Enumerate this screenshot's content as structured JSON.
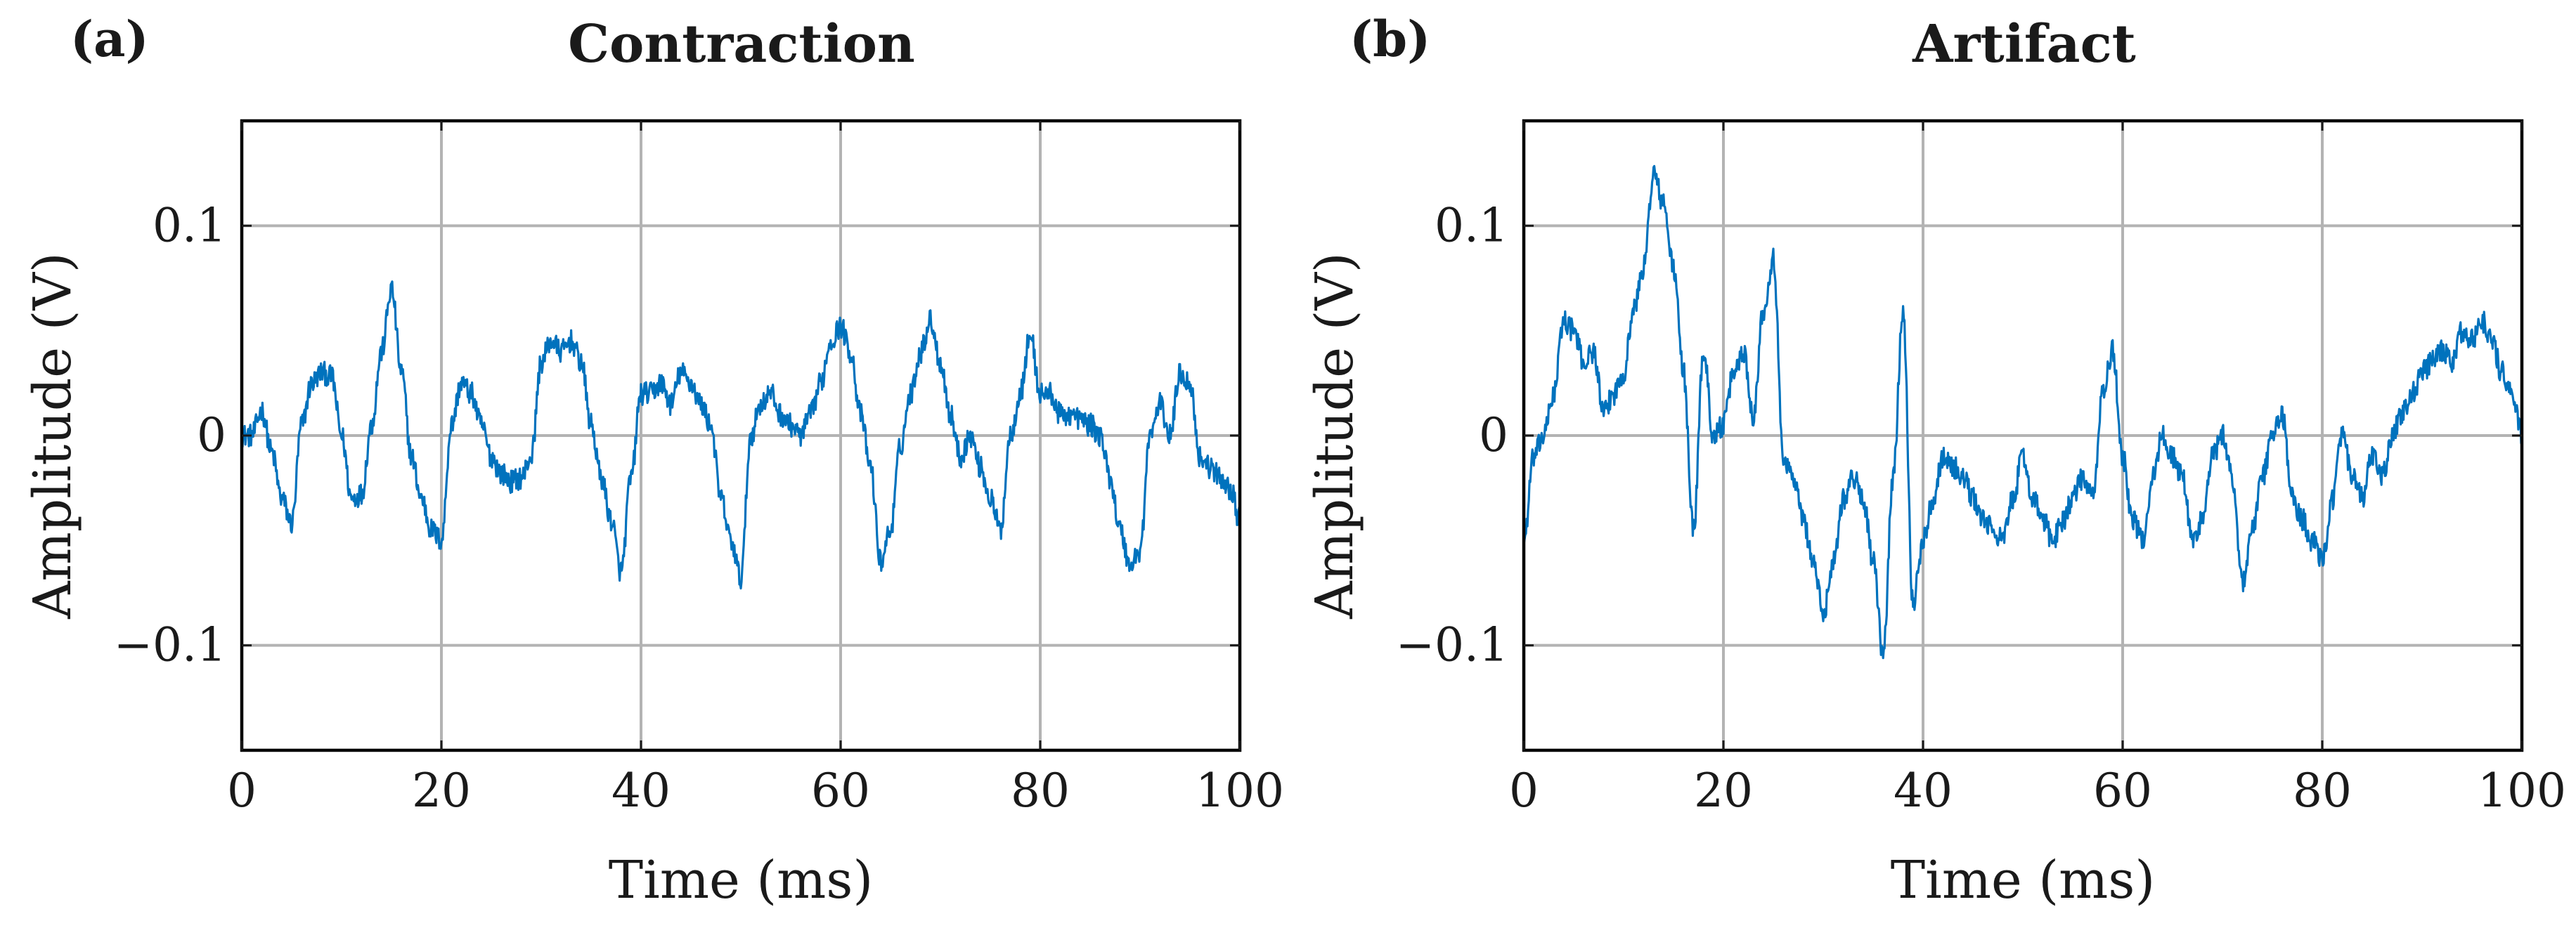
{
  "chart_data": [
    {
      "type": "line",
      "panel_label": "(a)",
      "title": "Contraction",
      "xlabel": "Time (ms)",
      "ylabel": "Amplitude (V)",
      "xlim": [
        0,
        100
      ],
      "ylim": [
        -0.15,
        0.15
      ],
      "xticks": [
        0,
        20,
        40,
        60,
        80,
        100
      ],
      "xtick_labels": [
        "0",
        "20",
        "40",
        "60",
        "80",
        "100"
      ],
      "yticks": [
        -0.1,
        0,
        0.1
      ],
      "ytick_labels": [
        "−0.1",
        "0",
        "0.1"
      ],
      "grid": true,
      "color": "#0072bd",
      "series": [
        {
          "name": "Contraction",
          "x": [
            0,
            1,
            2,
            3,
            4,
            5,
            6,
            7,
            8,
            9,
            10,
            11,
            12,
            13,
            14,
            15,
            16,
            17,
            18,
            19,
            20,
            21,
            22,
            23,
            24,
            25,
            26,
            27,
            28,
            29,
            30,
            31,
            32,
            33,
            34,
            35,
            36,
            37,
            38,
            39,
            40,
            41,
            42,
            43,
            44,
            45,
            46,
            47,
            48,
            49,
            50,
            51,
            52,
            53,
            54,
            55,
            56,
            57,
            58,
            59,
            60,
            61,
            62,
            63,
            64,
            65,
            66,
            67,
            68,
            69,
            70,
            71,
            72,
            73,
            74,
            75,
            76,
            77,
            78,
            79,
            80,
            81,
            82,
            83,
            84,
            85,
            86,
            87,
            88,
            89,
            90,
            91,
            92,
            93,
            94,
            95,
            96,
            97,
            98,
            99,
            100
          ],
          "values": [
            0.0,
            0.0,
            0.012,
            -0.008,
            -0.03,
            -0.042,
            0.005,
            0.025,
            0.03,
            0.028,
            0.0,
            -0.03,
            -0.028,
            0.005,
            0.04,
            0.07,
            0.03,
            -0.01,
            -0.03,
            -0.045,
            -0.05,
            0.005,
            0.025,
            0.02,
            0.005,
            -0.01,
            -0.018,
            -0.022,
            -0.02,
            -0.01,
            0.035,
            0.045,
            0.04,
            0.045,
            0.035,
            0.005,
            -0.02,
            -0.04,
            -0.065,
            -0.02,
            0.02,
            0.02,
            0.025,
            0.015,
            0.03,
            0.025,
            0.015,
            0.005,
            -0.03,
            -0.05,
            -0.068,
            0.0,
            0.015,
            0.02,
            0.01,
            0.005,
            0.0,
            0.01,
            0.025,
            0.045,
            0.052,
            0.04,
            0.01,
            -0.015,
            -0.06,
            -0.045,
            -0.005,
            0.02,
            0.04,
            0.055,
            0.035,
            0.01,
            -0.01,
            0.0,
            -0.015,
            -0.03,
            -0.045,
            0.0,
            0.02,
            0.048,
            0.02,
            0.02,
            0.01,
            0.01,
            0.008,
            0.005,
            0.0,
            -0.02,
            -0.045,
            -0.062,
            -0.055,
            0.0,
            0.015,
            0.0,
            0.03,
            0.025,
            -0.01,
            -0.015,
            -0.02,
            -0.025,
            -0.04
          ]
        }
      ]
    },
    {
      "type": "line",
      "panel_label": "(b)",
      "title": "Artifact",
      "xlabel": "Time (ms)",
      "ylabel": "Amplitude (V)",
      "xlim": [
        0,
        100
      ],
      "ylim": [
        -0.15,
        0.15
      ],
      "xticks": [
        0,
        20,
        40,
        60,
        80,
        100
      ],
      "xtick_labels": [
        "0",
        "20",
        "40",
        "60",
        "80",
        "100"
      ],
      "yticks": [
        -0.1,
        0,
        0.1
      ],
      "ytick_labels": [
        "−0.1",
        "0",
        "0.1"
      ],
      "grid": true,
      "color": "#0072bd",
      "series": [
        {
          "name": "Artifact",
          "x": [
            0,
            1,
            2,
            3,
            4,
            5,
            6,
            7,
            8,
            9,
            10,
            11,
            12,
            13,
            14,
            15,
            16,
            17,
            18,
            19,
            20,
            21,
            22,
            23,
            24,
            25,
            26,
            27,
            28,
            29,
            30,
            31,
            32,
            33,
            34,
            35,
            36,
            37,
            38,
            39,
            40,
            41,
            42,
            43,
            44,
            45,
            46,
            47,
            48,
            49,
            50,
            51,
            52,
            53,
            54,
            55,
            56,
            57,
            58,
            59,
            60,
            61,
            62,
            63,
            64,
            65,
            66,
            67,
            68,
            69,
            70,
            71,
            72,
            73,
            74,
            75,
            76,
            77,
            78,
            79,
            80,
            81,
            82,
            83,
            84,
            85,
            86,
            87,
            88,
            89,
            90,
            91,
            92,
            93,
            94,
            95,
            96,
            97,
            98,
            99,
            100
          ],
          "values": [
            -0.05,
            -0.01,
            0.0,
            0.02,
            0.055,
            0.05,
            0.035,
            0.04,
            0.01,
            0.02,
            0.03,
            0.06,
            0.08,
            0.125,
            0.11,
            0.08,
            0.03,
            -0.045,
            0.04,
            0.0,
            0.005,
            0.03,
            0.04,
            0.01,
            0.06,
            0.085,
            -0.01,
            -0.02,
            -0.04,
            -0.06,
            -0.085,
            -0.06,
            -0.03,
            -0.02,
            -0.03,
            -0.06,
            -0.105,
            -0.02,
            0.06,
            -0.08,
            -0.05,
            -0.03,
            -0.01,
            -0.015,
            -0.02,
            -0.03,
            -0.04,
            -0.045,
            -0.05,
            -0.03,
            -0.01,
            -0.03,
            -0.04,
            -0.05,
            -0.04,
            -0.03,
            -0.02,
            -0.03,
            0.02,
            0.04,
            -0.01,
            -0.04,
            -0.05,
            -0.02,
            0.0,
            -0.01,
            -0.02,
            -0.05,
            -0.04,
            -0.01,
            0.0,
            -0.02,
            -0.07,
            -0.045,
            -0.02,
            0.0,
            0.01,
            -0.03,
            -0.04,
            -0.05,
            -0.06,
            -0.03,
            0.0,
            -0.02,
            -0.03,
            -0.01,
            -0.02,
            0.0,
            0.01,
            0.02,
            0.03,
            0.035,
            0.04,
            0.035,
            0.05,
            0.045,
            0.055,
            0.045,
            0.03,
            0.02,
            0.0
          ]
        }
      ]
    }
  ]
}
